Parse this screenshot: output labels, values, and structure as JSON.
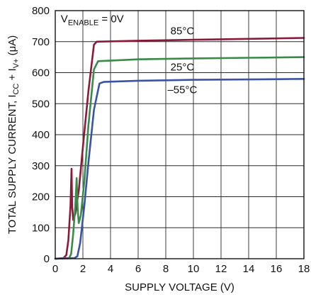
{
  "chart_data": {
    "type": "line",
    "xlabel": "SUPPLY VOLTAGE (V)",
    "ylabel": {
      "prefix": "TOTAL SUPPLY CURRENT, I",
      "sub1": "CC",
      "mid": " + I",
      "sub2": "V+",
      "suffix": " (μA)"
    },
    "xlim": [
      0,
      18
    ],
    "ylim": [
      0,
      800
    ],
    "xticks": [
      "0",
      "2",
      "4",
      "6",
      "8",
      "10",
      "12",
      "14",
      "16",
      "18"
    ],
    "yticks": [
      "0",
      "100",
      "200",
      "300",
      "400",
      "500",
      "600",
      "700",
      "800"
    ],
    "grid": true,
    "annotation": {
      "prefix": "V",
      "sub": "ENABLE",
      "suffix": " = 0V"
    },
    "series": [
      {
        "name": "85°C",
        "color": "#8b1a3a",
        "points": [
          [
            0,
            0
          ],
          [
            0.6,
            2
          ],
          [
            0.8,
            12
          ],
          [
            0.95,
            60
          ],
          [
            1.1,
            170
          ],
          [
            1.18,
            290
          ],
          [
            1.22,
            170
          ],
          [
            1.3,
            125
          ],
          [
            1.45,
            145
          ],
          [
            1.7,
            220
          ],
          [
            2.0,
            360
          ],
          [
            2.4,
            540
          ],
          [
            2.8,
            690
          ],
          [
            3.0,
            700
          ],
          [
            6,
            703
          ],
          [
            10,
            706
          ],
          [
            14,
            709
          ],
          [
            18,
            712
          ]
        ]
      },
      {
        "name": "25°C",
        "color": "#3a8a4a",
        "points": [
          [
            0,
            0
          ],
          [
            1.0,
            2
          ],
          [
            1.15,
            15
          ],
          [
            1.3,
            80
          ],
          [
            1.45,
            170
          ],
          [
            1.55,
            260
          ],
          [
            1.62,
            160
          ],
          [
            1.7,
            115
          ],
          [
            1.85,
            140
          ],
          [
            2.1,
            250
          ],
          [
            2.4,
            430
          ],
          [
            2.8,
            610
          ],
          [
            3.1,
            637
          ],
          [
            6,
            643
          ],
          [
            10,
            646
          ],
          [
            14,
            648
          ],
          [
            18,
            650
          ]
        ]
      },
      {
        "name": "–55°C",
        "color": "#3b53a6",
        "points": [
          [
            0,
            0
          ],
          [
            1.4,
            2
          ],
          [
            1.6,
            8
          ],
          [
            1.8,
            50
          ],
          [
            2.1,
            170
          ],
          [
            2.4,
            310
          ],
          [
            2.8,
            480
          ],
          [
            3.2,
            565
          ],
          [
            3.5,
            570
          ],
          [
            6,
            574
          ],
          [
            10,
            577
          ],
          [
            14,
            578
          ],
          [
            18,
            580
          ]
        ]
      }
    ],
    "labels": [
      {
        "text": "85°C",
        "x": 9.2,
        "y": 735
      },
      {
        "text": "25°C",
        "x": 9.2,
        "y": 618
      },
      {
        "text": "–55°C",
        "x": 9.2,
        "y": 545
      }
    ]
  }
}
